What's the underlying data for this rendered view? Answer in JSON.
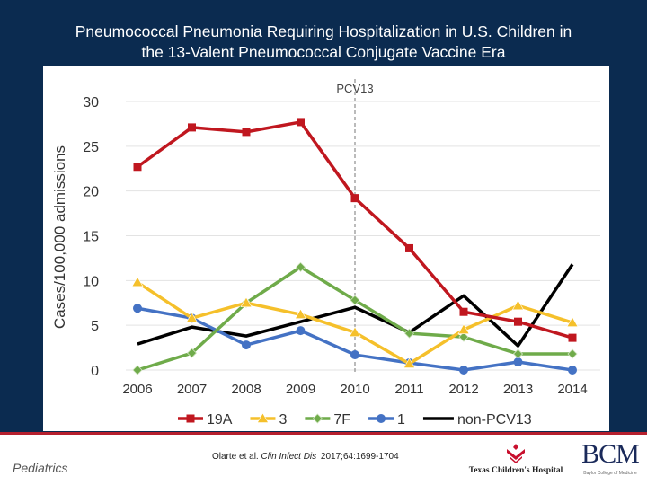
{
  "title_line1": "Pneumococcal Pneumonia Requiring Hospitalization in U.S. Children in",
  "title_line2": "the 13-Valent Pneumococcal Conjugate Vaccine Era",
  "footer": {
    "left_label": "Pediatrics",
    "citation_plain": "Olarte et al. ",
    "citation_italic": "Clin Infect Dis",
    "citation_rest": " 2017;64:1699-1704",
    "logo_tch": "Texas Children's Hospital",
    "logo_bcm": "BCM",
    "logo_bcm_sub": "Baylor College of Medicine"
  },
  "chart_data": {
    "type": "line",
    "title": "",
    "xlabel": "",
    "ylabel": "Cases/100,000 admissions",
    "x": [
      "2006",
      "2007",
      "2008",
      "2009",
      "2010",
      "2011",
      "2012",
      "2013",
      "2014"
    ],
    "ylim": [
      0,
      30
    ],
    "yticks": [
      0,
      5,
      10,
      15,
      20,
      25,
      30
    ],
    "grid": true,
    "legend_position": "bottom",
    "annotation": {
      "label": "PCV13",
      "x": "2010",
      "style": "dashed vertical line"
    },
    "series": [
      {
        "name": "19A",
        "color": "#c0171f",
        "marker": "square",
        "values": [
          22.7,
          27.1,
          26.6,
          27.7,
          19.2,
          13.6,
          6.5,
          5.4,
          3.6
        ]
      },
      {
        "name": "3",
        "color": "#f5c02b",
        "marker": "triangle",
        "values": [
          9.8,
          5.8,
          7.5,
          6.2,
          4.2,
          0.7,
          4.5,
          7.2,
          5.3
        ]
      },
      {
        "name": "7F",
        "color": "#6fab4a",
        "marker": "diamond",
        "values": [
          0,
          1.9,
          7.5,
          11.5,
          7.8,
          4.1,
          3.7,
          1.8,
          1.8
        ]
      },
      {
        "name": "1",
        "color": "#4472c4",
        "marker": "circle",
        "values": [
          6.9,
          5.8,
          2.8,
          4.4,
          1.7,
          0.8,
          0,
          0.9,
          0
        ]
      },
      {
        "name": "non-PCV13",
        "color": "#000000",
        "marker": "none",
        "values": [
          2.9,
          4.8,
          3.8,
          5.4,
          7.0,
          4.2,
          8.3,
          2.7,
          11.8
        ]
      }
    ]
  }
}
